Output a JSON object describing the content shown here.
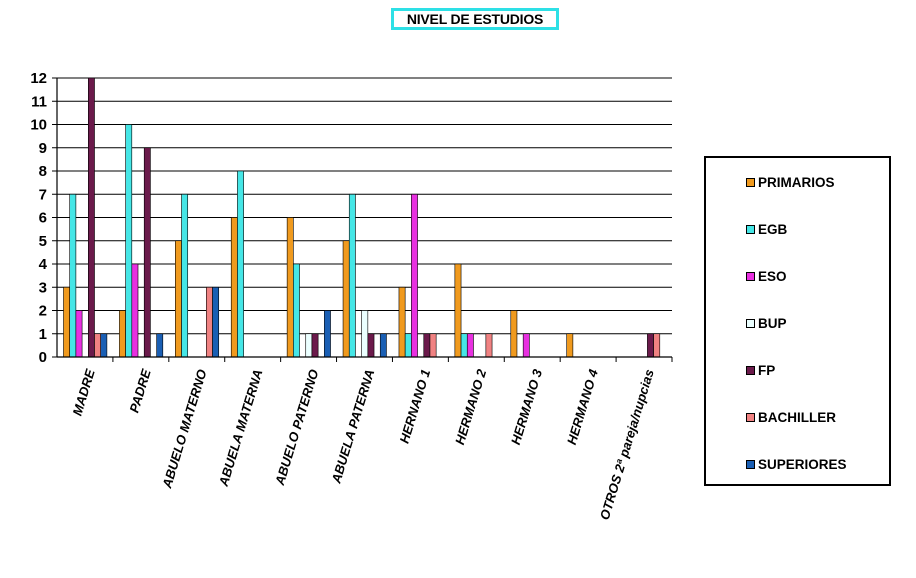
{
  "chart_data": {
    "type": "bar",
    "title": "NIVEL DE ESTUDIOS",
    "categories": [
      "MADRE",
      "PADRE",
      "ABUELO MATERNO",
      "ABUELA MATERNA",
      "ABUELO PATERNO",
      "ABUELA PATERNA",
      "HERNANO 1",
      "HERMANO 2",
      "HERMANO 3",
      "HERMANO 4",
      "OTROS 2ª pareja/nupcias"
    ],
    "ylim": [
      0,
      12
    ],
    "yticks": [
      "0",
      "1",
      "2",
      "3",
      "4",
      "5",
      "6",
      "7",
      "8",
      "9",
      "10",
      "11",
      "12"
    ],
    "grid": true,
    "legend_position": "right",
    "series": [
      {
        "name": "PRIMARIOS",
        "color": "#f09a1e",
        "values": [
          3,
          2,
          5,
          6,
          6,
          5,
          3,
          4,
          2,
          1,
          0
        ]
      },
      {
        "name": "EGB",
        "color": "#45e6e6",
        "values": [
          7,
          10,
          7,
          8,
          4,
          7,
          1,
          1,
          0,
          0,
          0
        ]
      },
      {
        "name": "ESO",
        "color": "#e830e0",
        "values": [
          2,
          4,
          0,
          0,
          0,
          0,
          7,
          1,
          1,
          0,
          0
        ]
      },
      {
        "name": "BUP",
        "color": "#ebffff",
        "values": [
          0,
          0,
          0,
          0,
          1,
          2,
          0,
          0,
          0,
          0,
          0
        ]
      },
      {
        "name": "FP",
        "color": "#6b1a4b",
        "values": [
          12,
          9,
          0,
          0,
          1,
          1,
          1,
          0,
          0,
          0,
          1
        ]
      },
      {
        "name": "BACHILLER",
        "color": "#f08282",
        "values": [
          1,
          0,
          3,
          0,
          0,
          0,
          1,
          1,
          0,
          0,
          1
        ]
      },
      {
        "name": "SUPERIORES",
        "color": "#1a5fb4",
        "values": [
          1,
          1,
          3,
          0,
          2,
          1,
          0,
          0,
          0,
          0,
          0
        ]
      }
    ]
  }
}
